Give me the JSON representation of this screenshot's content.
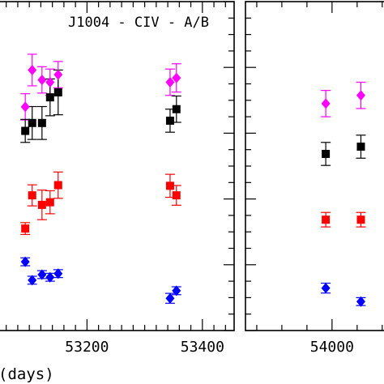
{
  "chart_data": {
    "type": "scatter",
    "title": "J1004 - CIV - A/B",
    "xlabel": "(days)",
    "ylabel": "",
    "panels": [
      {
        "id": "left",
        "xlim": [
          53045,
          53455
        ],
        "xticks": [
          53200,
          53400
        ],
        "xtick_labels": [
          "53200",
          "53400"
        ]
      },
      {
        "id": "right",
        "xlim": [
          53655,
          54220
        ],
        "xticks": [
          54000
        ],
        "xtick_labels": [
          "54000"
        ]
      }
    ],
    "ylim": [
      0,
      1
    ],
    "y_tick_labels_visible": false,
    "series": [
      {
        "color": "#ff00ff",
        "marker": "diamond",
        "points": [
          {
            "x": 53093,
            "y": 0.68,
            "err": 0.04
          },
          {
            "x": 53105,
            "y": 0.792,
            "err": 0.048
          },
          {
            "x": 53122,
            "y": 0.762,
            "err": 0.04
          },
          {
            "x": 53136,
            "y": 0.755,
            "err": 0.04
          },
          {
            "x": 53150,
            "y": 0.778,
            "err": 0.04
          },
          {
            "x": 53344,
            "y": 0.755,
            "err": 0.04
          },
          {
            "x": 53355,
            "y": 0.768,
            "err": 0.043
          },
          {
            "x": 53975,
            "y": 0.69,
            "err": 0.04
          },
          {
            "x": 54115,
            "y": 0.715,
            "err": 0.04
          }
        ]
      },
      {
        "color": "#000000",
        "marker": "square",
        "points": [
          {
            "x": 53093,
            "y": 0.607,
            "err": 0.035
          },
          {
            "x": 53105,
            "y": 0.631,
            "err": 0.05
          },
          {
            "x": 53122,
            "y": 0.631,
            "err": 0.05
          },
          {
            "x": 53136,
            "y": 0.709,
            "err": 0.056
          },
          {
            "x": 53150,
            "y": 0.724,
            "err": 0.068
          },
          {
            "x": 53344,
            "y": 0.638,
            "err": 0.035
          },
          {
            "x": 53355,
            "y": 0.673,
            "err": 0.04
          },
          {
            "x": 53975,
            "y": 0.537,
            "err": 0.035
          },
          {
            "x": 54115,
            "y": 0.559,
            "err": 0.035
          }
        ]
      },
      {
        "color": "#ff0000",
        "marker": "square",
        "points": [
          {
            "x": 53093,
            "y": 0.31,
            "err": 0.018
          },
          {
            "x": 53105,
            "y": 0.411,
            "err": 0.032
          },
          {
            "x": 53122,
            "y": 0.382,
            "err": 0.045
          },
          {
            "x": 53136,
            "y": 0.39,
            "err": 0.035
          },
          {
            "x": 53150,
            "y": 0.442,
            "err": 0.04
          },
          {
            "x": 53344,
            "y": 0.44,
            "err": 0.035
          },
          {
            "x": 53355,
            "y": 0.411,
            "err": 0.03
          },
          {
            "x": 53975,
            "y": 0.337,
            "err": 0.022
          },
          {
            "x": 54115,
            "y": 0.337,
            "err": 0.022
          }
        ]
      },
      {
        "color": "#0000ff",
        "marker": "diamond",
        "points": [
          {
            "x": 53093,
            "y": 0.209,
            "err": 0.012
          },
          {
            "x": 53105,
            "y": 0.153,
            "err": 0.012
          },
          {
            "x": 53122,
            "y": 0.17,
            "err": 0.012
          },
          {
            "x": 53136,
            "y": 0.162,
            "err": 0.012
          },
          {
            "x": 53150,
            "y": 0.173,
            "err": 0.012
          },
          {
            "x": 53344,
            "y": 0.098,
            "err": 0.015
          },
          {
            "x": 53355,
            "y": 0.121,
            "err": 0.012
          },
          {
            "x": 53975,
            "y": 0.129,
            "err": 0.015
          },
          {
            "x": 54115,
            "y": 0.088,
            "err": 0.012
          }
        ]
      }
    ]
  }
}
